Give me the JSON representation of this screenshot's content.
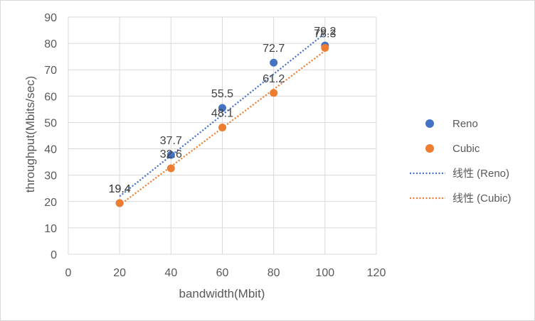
{
  "chart_data": {
    "type": "scatter",
    "xlabel": "bandwidth(Mbit)",
    "ylabel": "throughput(Mbits/sec)",
    "xlim": [
      0,
      120
    ],
    "ylim": [
      0,
      90
    ],
    "xticks": [
      0,
      20,
      40,
      60,
      80,
      100,
      120
    ],
    "yticks": [
      0,
      10,
      20,
      30,
      40,
      50,
      60,
      70,
      80,
      90
    ],
    "grid": true,
    "legend_position": "right",
    "series": [
      {
        "name": "Reno",
        "color": "#4472C4",
        "x": [
          20,
          40,
          60,
          80,
          100
        ],
        "y": [
          19.4,
          37.7,
          55.5,
          72.7,
          79.2
        ],
        "labels": [
          "19.4",
          "37.7",
          "55.5",
          "72.7",
          "79.2"
        ]
      },
      {
        "name": "Cubic",
        "color": "#ED7D31",
        "x": [
          20,
          40,
          60,
          80,
          100
        ],
        "y": [
          19.4,
          32.6,
          48.1,
          61.2,
          78.3
        ],
        "labels": [
          "19.4",
          "32.6",
          "48.1",
          "61.2",
          "78.3"
        ]
      }
    ],
    "trendlines": [
      {
        "name": "线性 (Reno)",
        "color": "#4472C4",
        "style": "dotted",
        "type": "linear"
      },
      {
        "name": "线性 (Cubic)",
        "color": "#ED7D31",
        "style": "dotted",
        "type": "linear"
      }
    ]
  }
}
